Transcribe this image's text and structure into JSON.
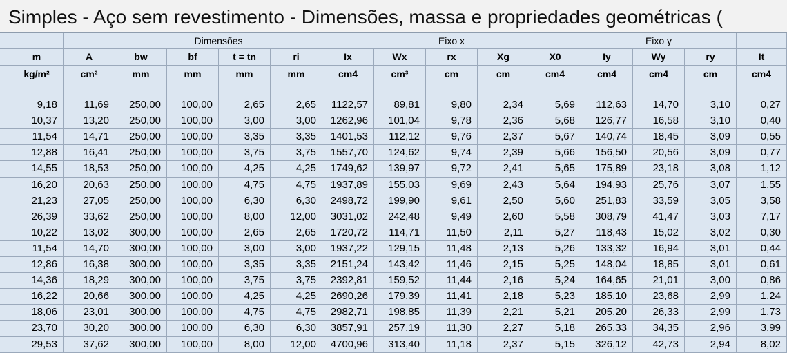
{
  "header": {
    "title": "Simples - Aço sem revestimento - Dimensões, massa e propriedades geométricas ("
  },
  "table": {
    "groups": [
      {
        "label": "Dimensões",
        "from": 2,
        "to": 5
      },
      {
        "label": "Eixo x",
        "from": 6,
        "to": 10
      },
      {
        "label": "Eixo y",
        "from": 11,
        "to": 13
      }
    ],
    "headers": [
      "m",
      "A",
      "bw",
      "bf",
      "t = tn",
      "ri",
      "Ix",
      "Wx",
      "rx",
      "Xg",
      "X0",
      "Iy",
      "Wy",
      "ry",
      "It"
    ],
    "units": [
      "kg/m²",
      "cm²",
      "mm",
      "mm",
      "mm",
      "mm",
      "cm4",
      "cm³",
      "cm",
      "cm",
      "cm4",
      "cm4",
      "cm4",
      "cm",
      "cm4"
    ],
    "rows": [
      [
        "9,18",
        "11,69",
        "250,00",
        "100,00",
        "2,65",
        "2,65",
        "1122,57",
        "89,81",
        "9,80",
        "2,34",
        "5,69",
        "112,63",
        "14,70",
        "3,10",
        "0,27"
      ],
      [
        "10,37",
        "13,20",
        "250,00",
        "100,00",
        "3,00",
        "3,00",
        "1262,96",
        "101,04",
        "9,78",
        "2,36",
        "5,68",
        "126,77",
        "16,58",
        "3,10",
        "0,40"
      ],
      [
        "11,54",
        "14,71",
        "250,00",
        "100,00",
        "3,35",
        "3,35",
        "1401,53",
        "112,12",
        "9,76",
        "2,37",
        "5,67",
        "140,74",
        "18,45",
        "3,09",
        "0,55"
      ],
      [
        "12,88",
        "16,41",
        "250,00",
        "100,00",
        "3,75",
        "3,75",
        "1557,70",
        "124,62",
        "9,74",
        "2,39",
        "5,66",
        "156,50",
        "20,56",
        "3,09",
        "0,77"
      ],
      [
        "14,55",
        "18,53",
        "250,00",
        "100,00",
        "4,25",
        "4,25",
        "1749,62",
        "139,97",
        "9,72",
        "2,41",
        "5,65",
        "175,89",
        "23,18",
        "3,08",
        "1,12"
      ],
      [
        "16,20",
        "20,63",
        "250,00",
        "100,00",
        "4,75",
        "4,75",
        "1937,89",
        "155,03",
        "9,69",
        "2,43",
        "5,64",
        "194,93",
        "25,76",
        "3,07",
        "1,55"
      ],
      [
        "21,23",
        "27,05",
        "250,00",
        "100,00",
        "6,30",
        "6,30",
        "2498,72",
        "199,90",
        "9,61",
        "2,50",
        "5,60",
        "251,83",
        "33,59",
        "3,05",
        "3,58"
      ],
      [
        "26,39",
        "33,62",
        "250,00",
        "100,00",
        "8,00",
        "12,00",
        "3031,02",
        "242,48",
        "9,49",
        "2,60",
        "5,58",
        "308,79",
        "41,47",
        "3,03",
        "7,17"
      ],
      [
        "10,22",
        "13,02",
        "300,00",
        "100,00",
        "2,65",
        "2,65",
        "1720,72",
        "114,71",
        "11,50",
        "2,11",
        "5,27",
        "118,43",
        "15,02",
        "3,02",
        "0,30"
      ],
      [
        "11,54",
        "14,70",
        "300,00",
        "100,00",
        "3,00",
        "3,00",
        "1937,22",
        "129,15",
        "11,48",
        "2,13",
        "5,26",
        "133,32",
        "16,94",
        "3,01",
        "0,44"
      ],
      [
        "12,86",
        "16,38",
        "300,00",
        "100,00",
        "3,35",
        "3,35",
        "2151,24",
        "143,42",
        "11,46",
        "2,15",
        "5,25",
        "148,04",
        "18,85",
        "3,01",
        "0,61"
      ],
      [
        "14,36",
        "18,29",
        "300,00",
        "100,00",
        "3,75",
        "3,75",
        "2392,81",
        "159,52",
        "11,44",
        "2,16",
        "5,24",
        "164,65",
        "21,01",
        "3,00",
        "0,86"
      ],
      [
        "16,22",
        "20,66",
        "300,00",
        "100,00",
        "4,25",
        "4,25",
        "2690,26",
        "179,39",
        "11,41",
        "2,18",
        "5,23",
        "185,10",
        "23,68",
        "2,99",
        "1,24"
      ],
      [
        "18,06",
        "23,01",
        "300,00",
        "100,00",
        "4,75",
        "4,75",
        "2982,71",
        "198,85",
        "11,39",
        "2,21",
        "5,21",
        "205,20",
        "26,33",
        "2,99",
        "1,73"
      ],
      [
        "23,70",
        "30,20",
        "300,00",
        "100,00",
        "6,30",
        "6,30",
        "3857,91",
        "257,19",
        "11,30",
        "2,27",
        "5,18",
        "265,33",
        "34,35",
        "2,96",
        "3,99"
      ],
      [
        "29,53",
        "37,62",
        "300,00",
        "100,00",
        "8,00",
        "12,00",
        "4700,96",
        "313,40",
        "11,18",
        "2,37",
        "5,15",
        "326,12",
        "42,73",
        "2,94",
        "8,02"
      ]
    ]
  }
}
